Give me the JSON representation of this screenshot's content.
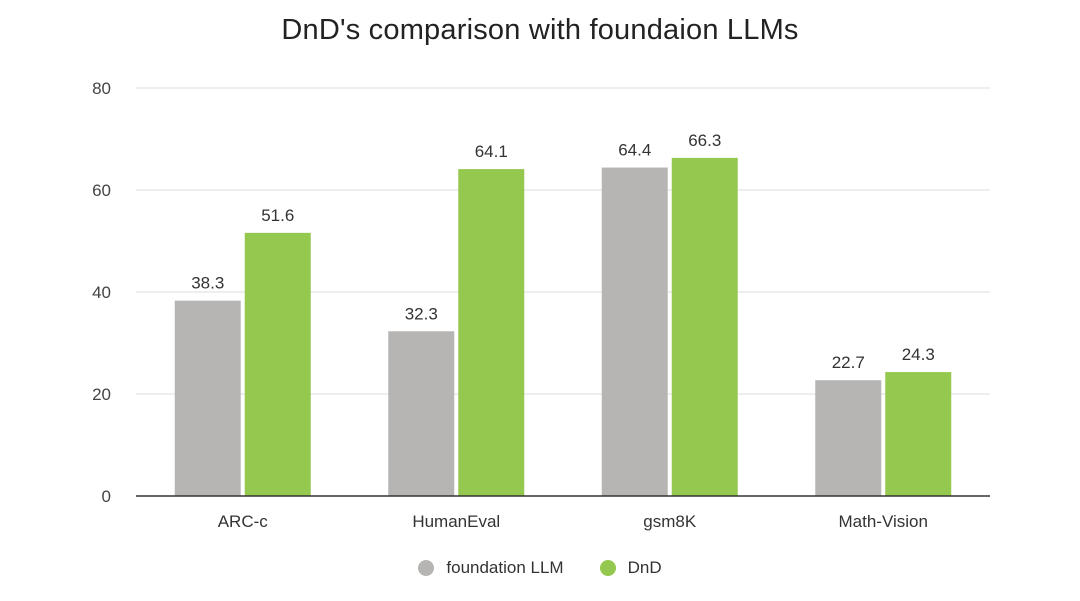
{
  "chart_data": {
    "type": "bar",
    "title": "DnD's comparison with foundaion LLMs",
    "xlabel": "",
    "ylabel": "",
    "categories": [
      "ARC-c",
      "HumanEval",
      "gsm8K",
      "Math-Vision"
    ],
    "series": [
      {
        "name": "foundation LLM",
        "color": "#b6b5b3",
        "values": [
          38.3,
          32.3,
          64.4,
          22.7
        ]
      },
      {
        "name": "DnD",
        "color": "#95c84f",
        "values": [
          51.6,
          64.1,
          66.3,
          24.3
        ]
      }
    ],
    "ylim": [
      0,
      80
    ],
    "yticks": [
      0,
      20,
      40,
      60,
      80
    ],
    "grid": true,
    "data_labels": true,
    "legend_position": "bottom"
  }
}
